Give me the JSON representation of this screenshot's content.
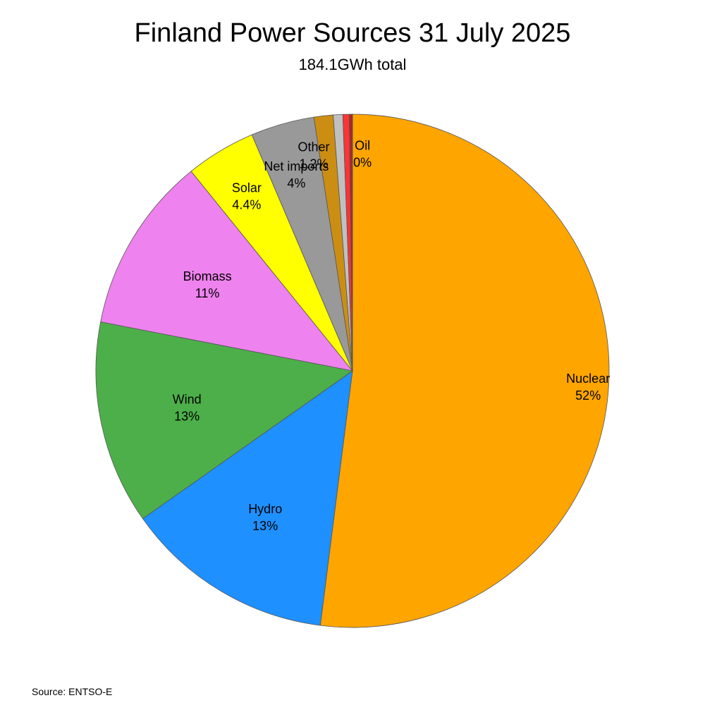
{
  "chart_data": {
    "type": "pie",
    "title": "Finland Power Sources 31 July 2025",
    "subtitle": "184.1GWh total",
    "source": "Source: ENTSO-E",
    "slices": [
      {
        "name": "Nuclear",
        "label": "52%",
        "value": 51.9,
        "color": "#FFA500",
        "show_label": true
      },
      {
        "name": "Hydro",
        "label": "13%",
        "value": 13.2,
        "color": "#1E90FF",
        "show_label": true
      },
      {
        "name": "Wind",
        "label": "13%",
        "value": 12.8,
        "color": "#4DAF4A",
        "show_label": true
      },
      {
        "name": "Biomass",
        "label": "11%",
        "value": 11.1,
        "color": "#EE82EE",
        "show_label": true
      },
      {
        "name": "Solar",
        "label": "4.4%",
        "value": 4.4,
        "color": "#FFFF00",
        "show_label": true
      },
      {
        "name": "Net imports",
        "label": "4%",
        "value": 4.0,
        "color": "#999999",
        "show_label": true
      },
      {
        "name": "Other",
        "label": "1.2%",
        "value": 1.2,
        "color": "#CC8E12",
        "show_label": true
      },
      {
        "name": "",
        "label": "",
        "value": 0.6,
        "color": "#C0C0C0",
        "show_label": false
      },
      {
        "name": "",
        "label": "",
        "value": 0.4,
        "color": "#FF3333",
        "show_label": false
      },
      {
        "name": "Oil",
        "label": "0%",
        "value": 0.2,
        "color": "#A52A2A",
        "show_label": true
      }
    ]
  }
}
